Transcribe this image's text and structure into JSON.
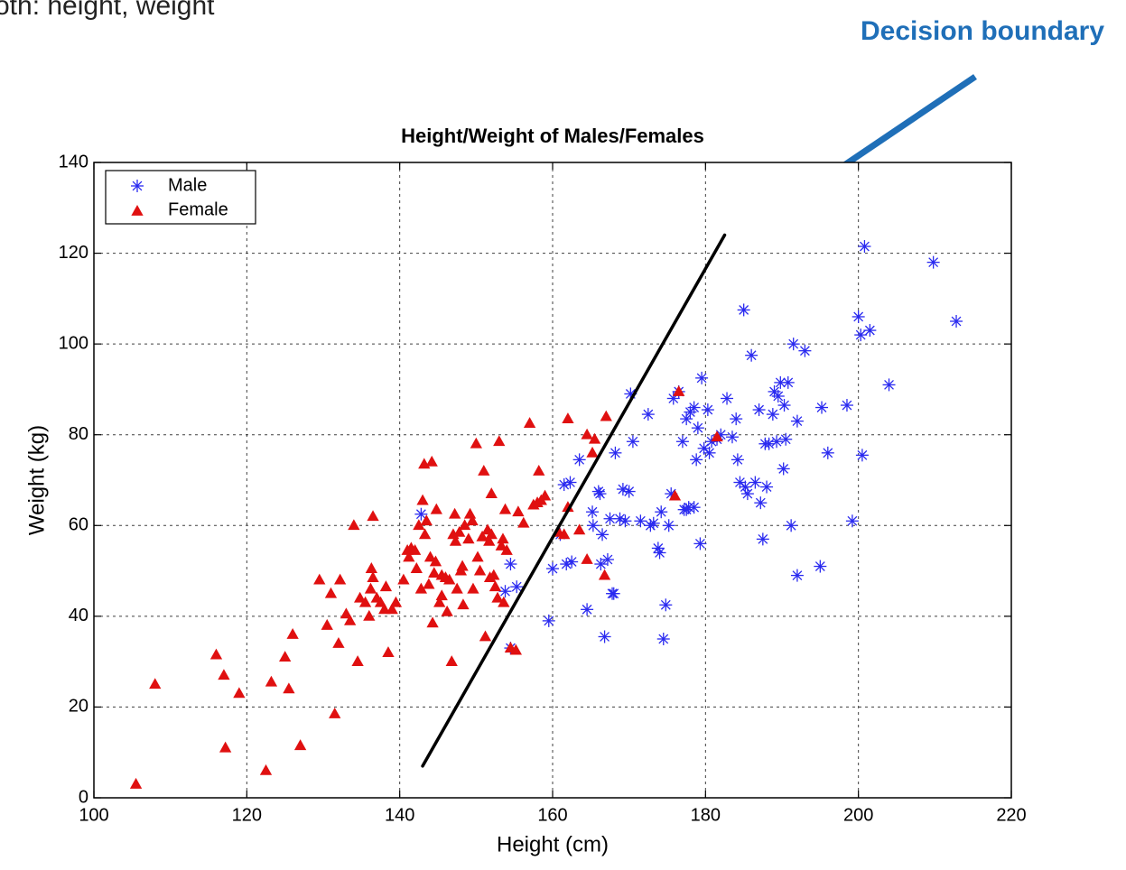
{
  "page": {
    "heading": "oth: height, weight"
  },
  "colors": {
    "male": "#2a2af0",
    "female": "#e01010",
    "boundary": "#000000",
    "annotation": "#1f6fb8"
  },
  "chart_data": {
    "type": "scatter",
    "title": "Height/Weight of Males/Females",
    "xlabel": "Height (cm)",
    "ylabel": "Weight (kg)",
    "xlim": [
      100,
      220
    ],
    "ylim": [
      0,
      140
    ],
    "xticks": [
      100,
      120,
      140,
      160,
      180,
      200,
      220
    ],
    "yticks": [
      0,
      20,
      40,
      60,
      80,
      100,
      120,
      140
    ],
    "grid": true,
    "legend_position": "top-left",
    "annotation": {
      "text": "Decision boundary",
      "points_to": [
        183.5,
        125
      ]
    },
    "decision_boundary": [
      [
        143,
        7
      ],
      [
        182.5,
        124
      ]
    ],
    "series": [
      {
        "name": "Male",
        "marker": "asterisk",
        "points": [
          [
            142.8,
            62.5
          ],
          [
            154.5,
            51.5
          ],
          [
            153.8,
            45.5
          ],
          [
            154.5,
            33
          ],
          [
            155.3,
            46.5
          ],
          [
            159.5,
            39
          ],
          [
            160,
            50.5
          ],
          [
            161,
            58
          ],
          [
            161.5,
            69
          ],
          [
            161.8,
            51.5
          ],
          [
            162.3,
            69.5
          ],
          [
            162.5,
            52
          ],
          [
            163.5,
            74.5
          ],
          [
            164.5,
            41.5
          ],
          [
            165.2,
            63
          ],
          [
            165.3,
            60
          ],
          [
            166,
            67.5
          ],
          [
            166.2,
            67
          ],
          [
            166.5,
            58
          ],
          [
            166.3,
            51.5
          ],
          [
            166.8,
            35.5
          ],
          [
            167.2,
            52.5
          ],
          [
            167.5,
            61.5
          ],
          [
            167.8,
            45
          ],
          [
            168,
            45
          ],
          [
            168.2,
            76
          ],
          [
            168.8,
            61.5
          ],
          [
            169.2,
            68
          ],
          [
            169.5,
            61
          ],
          [
            170,
            67.5
          ],
          [
            170.2,
            89
          ],
          [
            170.5,
            78.5
          ],
          [
            171.5,
            61
          ],
          [
            172.5,
            84.5
          ],
          [
            172.8,
            60
          ],
          [
            173.2,
            60.5
          ],
          [
            173.8,
            55
          ],
          [
            174,
            54
          ],
          [
            174.2,
            63
          ],
          [
            174.5,
            35
          ],
          [
            174.8,
            42.5
          ],
          [
            175.2,
            60
          ],
          [
            175.5,
            67
          ],
          [
            175.8,
            88
          ],
          [
            176.5,
            89.5
          ],
          [
            177,
            78.5
          ],
          [
            177.2,
            63.5
          ],
          [
            177.5,
            63.5
          ],
          [
            177.5,
            83.5
          ],
          [
            177.8,
            64
          ],
          [
            178,
            85
          ],
          [
            178.5,
            86
          ],
          [
            178.5,
            64
          ],
          [
            178.8,
            74.5
          ],
          [
            179,
            81.5
          ],
          [
            179.3,
            56
          ],
          [
            179.5,
            92.5
          ],
          [
            179.8,
            77
          ],
          [
            180.3,
            85.5
          ],
          [
            180.5,
            76
          ],
          [
            180.8,
            78.5
          ],
          [
            181.5,
            79
          ],
          [
            182,
            80
          ],
          [
            182.8,
            88
          ],
          [
            183.5,
            79.5
          ],
          [
            184,
            83.5
          ],
          [
            184.2,
            74.5
          ],
          [
            184.5,
            69.5
          ],
          [
            185,
            107.5
          ],
          [
            185.2,
            68.5
          ],
          [
            185.5,
            67
          ],
          [
            186,
            97.5
          ],
          [
            186.5,
            69.5
          ],
          [
            187,
            85.5
          ],
          [
            187.2,
            65
          ],
          [
            187.5,
            57
          ],
          [
            187.8,
            78
          ],
          [
            188,
            68.5
          ],
          [
            188.3,
            78
          ],
          [
            188.8,
            84.5
          ],
          [
            189,
            89.5
          ],
          [
            189.3,
            78.5
          ],
          [
            189.5,
            88.5
          ],
          [
            189.8,
            91.5
          ],
          [
            190.2,
            72.5
          ],
          [
            190.3,
            86.5
          ],
          [
            190.5,
            79
          ],
          [
            190.8,
            91.5
          ],
          [
            191.2,
            60
          ],
          [
            191.5,
            100
          ],
          [
            192,
            83
          ],
          [
            192,
            49
          ],
          [
            193,
            98.5
          ],
          [
            195,
            51
          ],
          [
            195.2,
            86
          ],
          [
            196,
            76
          ],
          [
            198.5,
            86.5
          ],
          [
            199.2,
            61
          ],
          [
            200,
            106
          ],
          [
            200.3,
            102
          ],
          [
            200.5,
            75.5
          ],
          [
            200.8,
            121.5
          ],
          [
            201.5,
            103
          ],
          [
            204,
            91
          ],
          [
            209.8,
            118
          ],
          [
            212.8,
            105
          ]
        ]
      },
      {
        "name": "Female",
        "marker": "triangle",
        "points": [
          [
            105.5,
            3
          ],
          [
            108,
            25
          ],
          [
            116,
            31.5
          ],
          [
            117,
            27
          ],
          [
            117.2,
            11
          ],
          [
            119,
            23
          ],
          [
            122.5,
            6
          ],
          [
            123.2,
            25.5
          ],
          [
            125,
            31
          ],
          [
            125.5,
            24
          ],
          [
            126,
            36
          ],
          [
            127,
            11.5
          ],
          [
            129.5,
            48
          ],
          [
            130.5,
            38
          ],
          [
            131,
            45
          ],
          [
            131.5,
            18.5
          ],
          [
            132,
            34
          ],
          [
            132.2,
            48
          ],
          [
            133,
            40.5
          ],
          [
            133.5,
            39
          ],
          [
            134,
            60
          ],
          [
            134.5,
            30
          ],
          [
            134.8,
            44
          ],
          [
            135.5,
            43
          ],
          [
            136,
            40
          ],
          [
            136.2,
            46
          ],
          [
            136.3,
            50.5
          ],
          [
            136.5,
            62
          ],
          [
            136.5,
            48.5
          ],
          [
            137,
            44
          ],
          [
            137.5,
            43
          ],
          [
            138,
            41.5
          ],
          [
            138.2,
            46.5
          ],
          [
            138.5,
            32
          ],
          [
            139,
            41.5
          ],
          [
            139.5,
            43
          ],
          [
            140.5,
            48
          ],
          [
            141,
            54.5
          ],
          [
            141.2,
            53
          ],
          [
            141.5,
            55
          ],
          [
            142,
            54.5
          ],
          [
            142.2,
            50.5
          ],
          [
            142.5,
            60
          ],
          [
            142.8,
            46
          ],
          [
            143,
            65.5
          ],
          [
            143.2,
            73.5
          ],
          [
            143.3,
            58
          ],
          [
            143.5,
            61
          ],
          [
            143.8,
            47
          ],
          [
            144,
            53
          ],
          [
            144.2,
            74
          ],
          [
            144.3,
            38.5
          ],
          [
            144.5,
            49.5
          ],
          [
            144.7,
            52
          ],
          [
            144.8,
            63.5
          ],
          [
            145.2,
            43
          ],
          [
            145.5,
            44.5
          ],
          [
            145.5,
            49
          ],
          [
            146,
            48.5
          ],
          [
            146.2,
            41
          ],
          [
            146.5,
            48
          ],
          [
            146.8,
            30
          ],
          [
            147,
            58
          ],
          [
            147.2,
            62.5
          ],
          [
            147.3,
            56.5
          ],
          [
            147.5,
            46
          ],
          [
            147.8,
            58.5
          ],
          [
            148,
            50
          ],
          [
            148.2,
            51
          ],
          [
            148.3,
            42.5
          ],
          [
            148.5,
            60
          ],
          [
            149,
            57
          ],
          [
            149.2,
            62.5
          ],
          [
            149.5,
            61
          ],
          [
            149.6,
            46
          ],
          [
            150,
            78
          ],
          [
            150.2,
            53
          ],
          [
            150.5,
            50
          ],
          [
            150.8,
            57.5
          ],
          [
            151,
            72
          ],
          [
            151.2,
            35.5
          ],
          [
            151.5,
            59
          ],
          [
            151.7,
            56.5
          ],
          [
            151.8,
            48.5
          ],
          [
            152,
            58
          ],
          [
            152,
            67
          ],
          [
            152.3,
            49
          ],
          [
            152.5,
            46.5
          ],
          [
            152.8,
            44
          ],
          [
            153,
            78.5
          ],
          [
            153.3,
            55.5
          ],
          [
            153.5,
            57
          ],
          [
            153.6,
            43
          ],
          [
            153.8,
            63.5
          ],
          [
            154,
            54.5
          ],
          [
            154.5,
            33
          ],
          [
            155.2,
            32.5
          ],
          [
            155.5,
            63
          ],
          [
            156.2,
            60.5
          ],
          [
            157,
            82.5
          ],
          [
            157.5,
            64.5
          ],
          [
            158,
            65
          ],
          [
            158.2,
            72
          ],
          [
            158.5,
            65.5
          ],
          [
            159,
            66.5
          ],
          [
            160.8,
            58.5
          ],
          [
            161.5,
            58
          ],
          [
            162,
            83.5
          ],
          [
            162,
            64
          ],
          [
            163.5,
            59
          ],
          [
            164.5,
            52.5
          ],
          [
            164.5,
            80
          ],
          [
            165.2,
            76
          ],
          [
            165.5,
            79
          ],
          [
            166.8,
            49
          ],
          [
            167,
            84
          ],
          [
            176,
            66.5
          ],
          [
            176.5,
            89.5
          ],
          [
            181.5,
            79.5
          ]
        ]
      }
    ]
  }
}
